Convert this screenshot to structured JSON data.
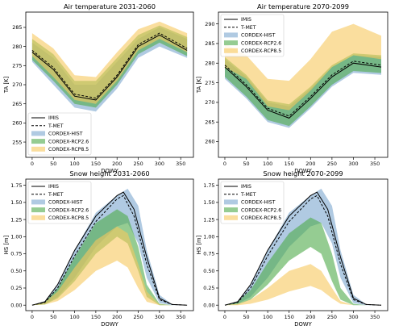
{
  "colors": {
    "hist": "#7ba7cf",
    "rcp26": "#4faa4a",
    "rcp85": "#f7c85e",
    "obs": "#000000"
  },
  "legend": [
    {
      "name": "IMIS",
      "style": "solid-line"
    },
    {
      "name": "T-MET",
      "style": "dashed-line"
    },
    {
      "name": "CORDEX-HIST",
      "style": "band",
      "color": "#7ba7cf"
    },
    {
      "name": "CORDEX-RCP2.6",
      "style": "band",
      "color": "#4faa4a"
    },
    {
      "name": "CORDEX-RCP8.5",
      "style": "band",
      "color": "#f7c85e"
    }
  ],
  "chart_data": [
    {
      "type": "area",
      "title": "Air temperature 2031-2060",
      "xlabel": "DOWY",
      "ylabel": "TA [K]",
      "xlim": [
        -15,
        380
      ],
      "ylim": [
        251,
        289
      ],
      "xticks": [
        0,
        50,
        100,
        150,
        200,
        250,
        300,
        350
      ],
      "yticks": [
        255,
        260,
        265,
        270,
        275,
        280,
        285
      ],
      "legend_position": "bottom-left",
      "lines": {
        "x": [
          0,
          50,
          100,
          150,
          200,
          250,
          300,
          365
        ],
        "IMIS": [
          278.5,
          274,
          267,
          266,
          272,
          280,
          283,
          279
        ],
        "T-MET": [
          279,
          274.5,
          267.5,
          266.5,
          272.5,
          280.5,
          283.5,
          279.5
        ]
      },
      "bands": {
        "x": [
          0,
          50,
          100,
          150,
          200,
          250,
          300,
          365
        ],
        "CORDEX-HIST": {
          "low": [
            276,
            270,
            264,
            263,
            269,
            277,
            280,
            277
          ],
          "high": [
            281,
            277,
            270,
            270,
            276,
            282,
            285,
            282
          ]
        },
        "CORDEX-RCP2.6": {
          "low": [
            276.5,
            271,
            265,
            264,
            270,
            278,
            281,
            277.5
          ],
          "high": [
            282,
            278,
            271,
            271,
            277,
            283,
            285.5,
            282.5
          ]
        },
        "CORDEX-RCP8.5": {
          "low": [
            277.5,
            272,
            266,
            265,
            271,
            279,
            282,
            278.5
          ],
          "high": [
            283.5,
            279.5,
            272.5,
            272,
            278.5,
            284.5,
            286.5,
            283.5
          ]
        }
      }
    },
    {
      "type": "area",
      "title": "Air temperature 2070-2099",
      "xlabel": "DOWY",
      "ylabel": "TA [K]",
      "xlim": [
        -15,
        380
      ],
      "ylim": [
        256,
        293
      ],
      "xticks": [
        0,
        50,
        100,
        150,
        200,
        250,
        300,
        350
      ],
      "yticks": [
        260,
        265,
        270,
        275,
        280,
        285,
        290
      ],
      "legend_position": "top-left",
      "lines": {
        "x": [
          0,
          50,
          100,
          150,
          200,
          250,
          300,
          365
        ],
        "IMIS": [
          279,
          274,
          268,
          266,
          271,
          276.5,
          280,
          279
        ],
        "T-MET": [
          279.5,
          274.5,
          268.5,
          266.5,
          271.5,
          277,
          280.5,
          279.5
        ]
      },
      "bands": {
        "x": [
          0,
          50,
          100,
          150,
          200,
          250,
          300,
          365
        ],
        "CORDEX-HIST": {
          "low": [
            276,
            271,
            265,
            263.5,
            268.5,
            274,
            277.5,
            277
          ],
          "high": [
            281,
            276.5,
            270,
            269,
            273.5,
            279,
            282,
            281.5
          ]
        },
        "CORDEX-RCP2.6": {
          "low": [
            276.5,
            271.5,
            265.5,
            264,
            269,
            274.5,
            278,
            277.5
          ],
          "high": [
            281.5,
            277,
            270.5,
            269.5,
            274,
            279.5,
            282.5,
            282
          ]
        },
        "CORDEX-RCP8.5": {
          "low": [
            279,
            276,
            269,
            268,
            273,
            279,
            282,
            281
          ],
          "high": [
            285,
            282,
            276,
            275.5,
            281,
            288,
            290,
            287
          ]
        }
      }
    },
    {
      "type": "area",
      "title": "Snow height 2031-2060",
      "xlabel": "DOWY",
      "ylabel": "HS [m]",
      "xlim": [
        -15,
        380
      ],
      "ylim": [
        -0.08,
        1.84
      ],
      "xticks": [
        0,
        50,
        100,
        150,
        200,
        250,
        300,
        350
      ],
      "yticks": [
        0.0,
        0.25,
        0.5,
        0.75,
        1.0,
        1.25,
        1.5,
        1.75
      ],
      "legend_position": "top-left",
      "lines": {
        "x": [
          0,
          30,
          60,
          100,
          150,
          200,
          215,
          240,
          270,
          300,
          330,
          365
        ],
        "IMIS": [
          0.0,
          0.05,
          0.3,
          0.8,
          1.3,
          1.6,
          1.65,
          1.4,
          0.7,
          0.1,
          0.01,
          0.0
        ],
        "T-MET": [
          0.0,
          0.04,
          0.25,
          0.72,
          1.22,
          1.55,
          1.6,
          1.3,
          0.6,
          0.08,
          0.01,
          0.0
        ]
      },
      "bands": {
        "x": [
          0,
          30,
          60,
          100,
          150,
          200,
          225,
          250,
          270,
          300,
          330,
          365
        ],
        "CORDEX-HIST": {
          "low": [
            0.0,
            0.02,
            0.12,
            0.4,
            0.85,
            1.15,
            1.2,
            0.9,
            0.4,
            0.03,
            0.0,
            0.0
          ],
          "high": [
            0.0,
            0.06,
            0.3,
            0.8,
            1.35,
            1.6,
            1.7,
            1.45,
            0.8,
            0.15,
            0.01,
            0.0
          ]
        },
        "CORDEX-RCP2.6": {
          "low": [
            0.0,
            0.01,
            0.1,
            0.35,
            0.75,
            1.0,
            0.9,
            0.5,
            0.12,
            0.0,
            0.0,
            0.0
          ],
          "high": [
            0.0,
            0.05,
            0.25,
            0.7,
            1.2,
            1.4,
            1.3,
            0.85,
            0.3,
            0.02,
            0.0,
            0.0
          ]
        },
        "CORDEX-RCP8.5": {
          "low": [
            0.0,
            0.01,
            0.06,
            0.22,
            0.5,
            0.65,
            0.55,
            0.25,
            0.05,
            0.0,
            0.0,
            0.0
          ],
          "high": [
            0.0,
            0.04,
            0.2,
            0.55,
            0.95,
            1.15,
            1.05,
            0.6,
            0.2,
            0.01,
            0.0,
            0.0
          ]
        }
      }
    },
    {
      "type": "area",
      "title": "Snow height 2070-2099",
      "xlabel": "DOWY",
      "ylabel": "HS [m]",
      "xlim": [
        -15,
        380
      ],
      "ylim": [
        -0.08,
        1.84
      ],
      "xticks": [
        0,
        50,
        100,
        150,
        200,
        250,
        300,
        350
      ],
      "yticks": [
        0.0,
        0.25,
        0.5,
        0.75,
        1.0,
        1.25,
        1.5,
        1.75
      ],
      "legend_position": "top-left",
      "lines": {
        "x": [
          0,
          30,
          60,
          100,
          150,
          200,
          215,
          240,
          270,
          300,
          330,
          365
        ],
        "IMIS": [
          0.0,
          0.05,
          0.3,
          0.8,
          1.3,
          1.6,
          1.65,
          1.4,
          0.7,
          0.1,
          0.01,
          0.0
        ],
        "T-MET": [
          0.0,
          0.04,
          0.25,
          0.72,
          1.22,
          1.55,
          1.6,
          1.3,
          0.6,
          0.08,
          0.01,
          0.0
        ]
      },
      "bands": {
        "x": [
          0,
          30,
          60,
          100,
          150,
          200,
          225,
          250,
          270,
          300,
          330,
          365
        ],
        "CORDEX-HIST": {
          "low": [
            0.0,
            0.02,
            0.12,
            0.4,
            0.85,
            1.15,
            1.2,
            0.9,
            0.4,
            0.03,
            0.0,
            0.0
          ],
          "high": [
            0.0,
            0.06,
            0.3,
            0.8,
            1.35,
            1.6,
            1.7,
            1.45,
            0.8,
            0.15,
            0.01,
            0.0
          ]
        },
        "CORDEX-RCP2.6": {
          "low": [
            0.0,
            0.01,
            0.08,
            0.3,
            0.65,
            0.85,
            0.75,
            0.35,
            0.08,
            0.0,
            0.0,
            0.0
          ],
          "high": [
            0.0,
            0.05,
            0.22,
            0.62,
            1.05,
            1.28,
            1.2,
            0.75,
            0.25,
            0.02,
            0.0,
            0.0
          ]
        },
        "CORDEX-RCP8.5": {
          "low": [
            0.0,
            0.0,
            0.02,
            0.08,
            0.2,
            0.28,
            0.22,
            0.1,
            0.02,
            0.0,
            0.0,
            0.0
          ],
          "high": [
            0.0,
            0.02,
            0.08,
            0.25,
            0.5,
            0.6,
            0.5,
            0.25,
            0.06,
            0.0,
            0.0,
            0.0
          ]
        }
      }
    }
  ]
}
